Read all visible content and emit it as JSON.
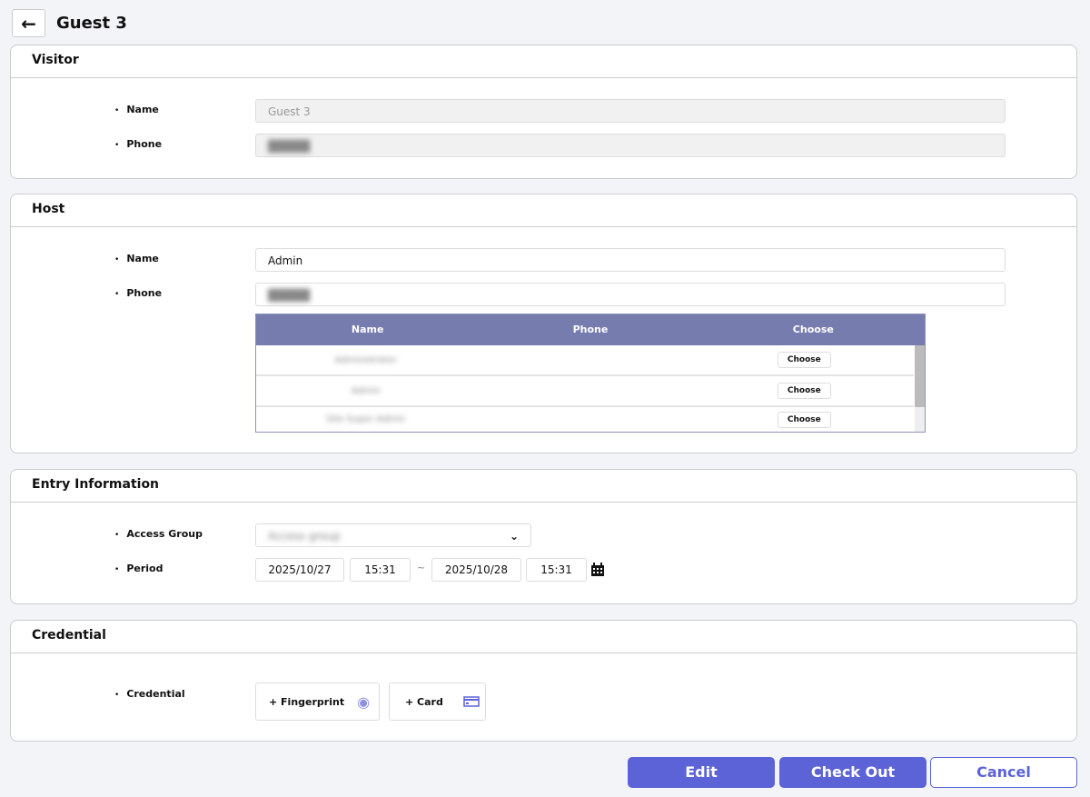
{
  "header": {
    "title": "Guest 3",
    "back_icon": "arrow-left-icon"
  },
  "visitor": {
    "title": "Visitor",
    "name_label": "Name",
    "name_value": "Guest 3",
    "phone_label": "Phone"
  },
  "host": {
    "title": "Host",
    "name_label": "Name",
    "name_value": "Admin",
    "phone_label": "Phone",
    "table": {
      "columns": [
        "Name",
        "Phone",
        "Choose"
      ],
      "rows": [
        {
          "name": "Administrator",
          "choose": "Choose"
        },
        {
          "name": "Admin",
          "choose": "Choose"
        },
        {
          "name": "Site Super Admin",
          "choose": "Choose"
        }
      ]
    }
  },
  "entry": {
    "title": "Entry Information",
    "access_group_label": "Access Group",
    "access_group_value": "Access group",
    "period_label": "Period",
    "start_date": "2025/10/27",
    "start_time": "15:31",
    "separator": "~",
    "end_date": "2025/10/28",
    "end_time": "15:31"
  },
  "credential": {
    "title": "Credential",
    "label": "Credential",
    "fingerprint": "+ Fingerprint",
    "card": "+ Card"
  },
  "actions": {
    "edit": "Edit",
    "checkout": "Check Out",
    "cancel": "Cancel"
  },
  "colors": {
    "accent": "#5b63d6",
    "table_header": "#777caf"
  }
}
